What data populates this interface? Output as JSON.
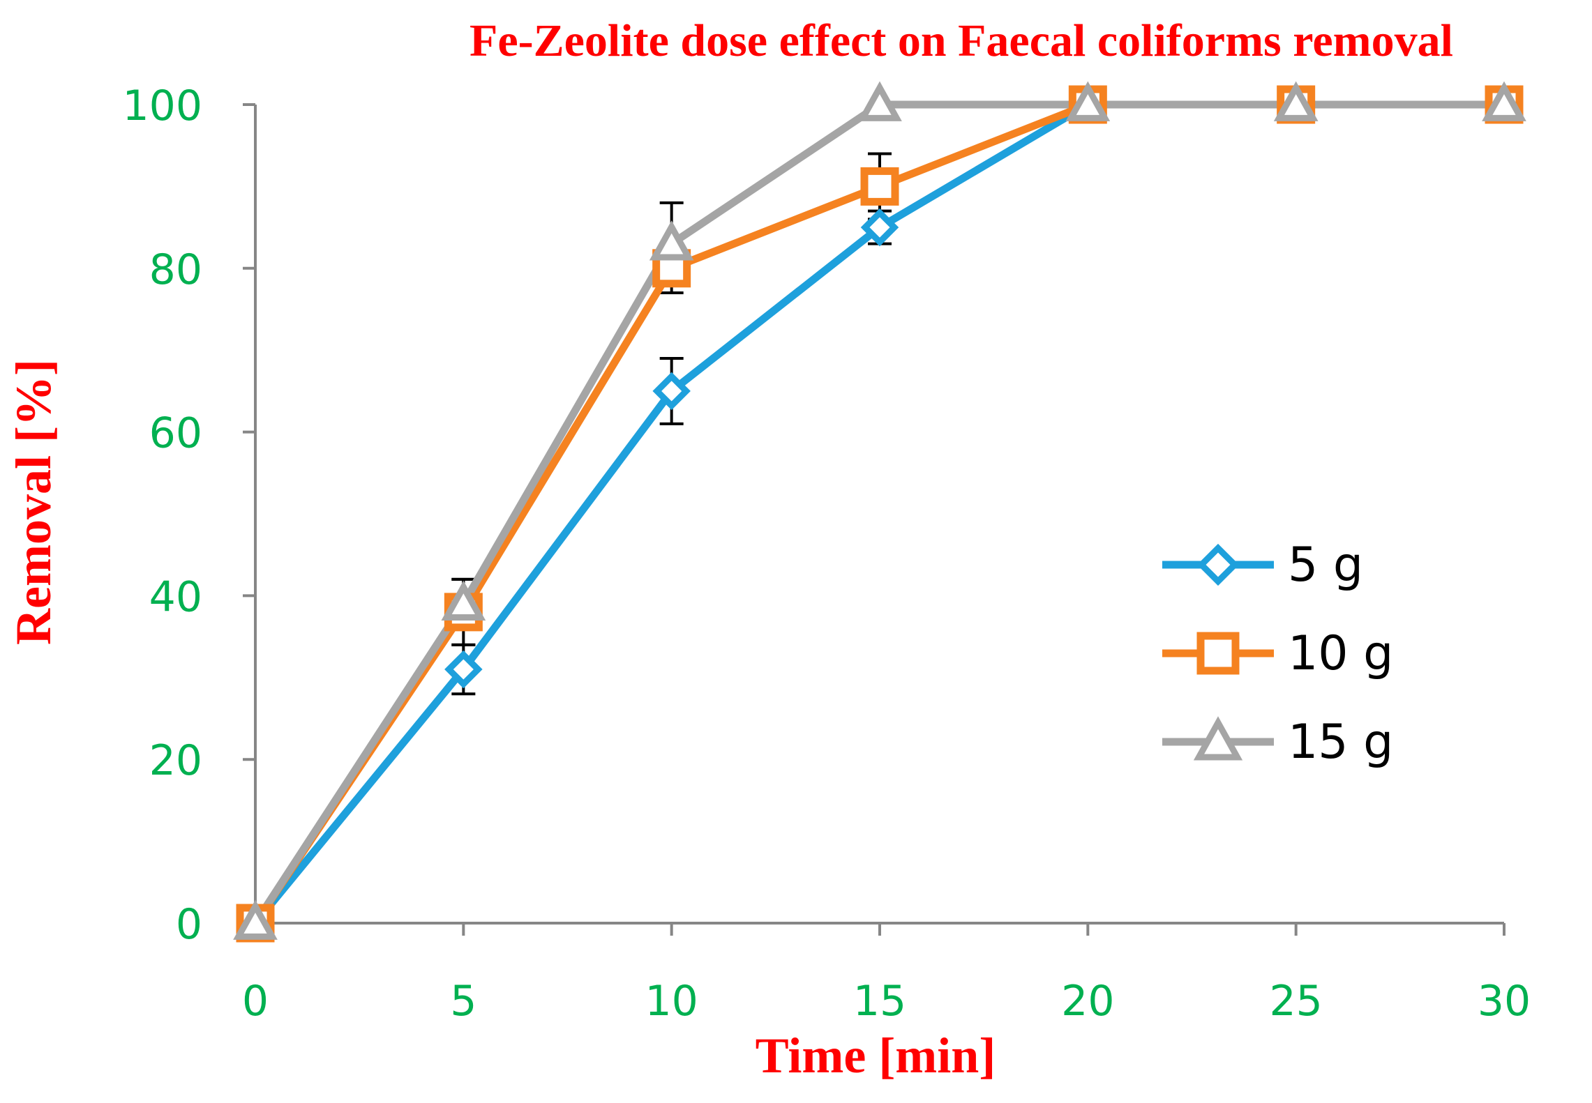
{
  "chart_data": {
    "type": "line",
    "title": "Fe-Zeolite dose effect on Faecal coliforms removal",
    "xlabel": "Time [min]",
    "ylabel": "Removal [%]",
    "xlim": [
      0,
      30
    ],
    "ylim": [
      0,
      100
    ],
    "xticks": [
      "0",
      "5",
      "10",
      "15",
      "20",
      "25",
      "30"
    ],
    "yticks": [
      "0",
      "20",
      "40",
      "60",
      "80",
      "100"
    ],
    "grid": false,
    "legend_position": "right",
    "x": [
      0,
      5,
      10,
      15,
      20,
      25,
      30
    ],
    "series": [
      {
        "name": "5 g",
        "color": "#1ea0dc",
        "marker": "diamond",
        "values": [
          0,
          31,
          65,
          85,
          100,
          100,
          100
        ],
        "errors": [
          0,
          3,
          4,
          2,
          0,
          0,
          0
        ]
      },
      {
        "name": "10 g",
        "color": "#f58220",
        "marker": "square",
        "values": [
          0,
          38,
          80,
          90,
          100,
          100,
          100
        ],
        "errors": [
          0,
          4,
          3,
          4,
          0,
          0,
          0
        ]
      },
      {
        "name": "15 g",
        "color": "#a5a5a5",
        "marker": "triangle",
        "values": [
          0,
          39,
          83,
          100,
          100,
          100,
          100
        ],
        "errors": [
          0,
          3,
          5,
          0,
          0,
          0,
          0
        ]
      }
    ],
    "colors": {
      "title": "#ff0000",
      "axis_label": "#ff0000",
      "tick_label": "#00b050",
      "axis_line": "#868686",
      "error_bar": "#000000",
      "legend_text": "#000000"
    }
  }
}
